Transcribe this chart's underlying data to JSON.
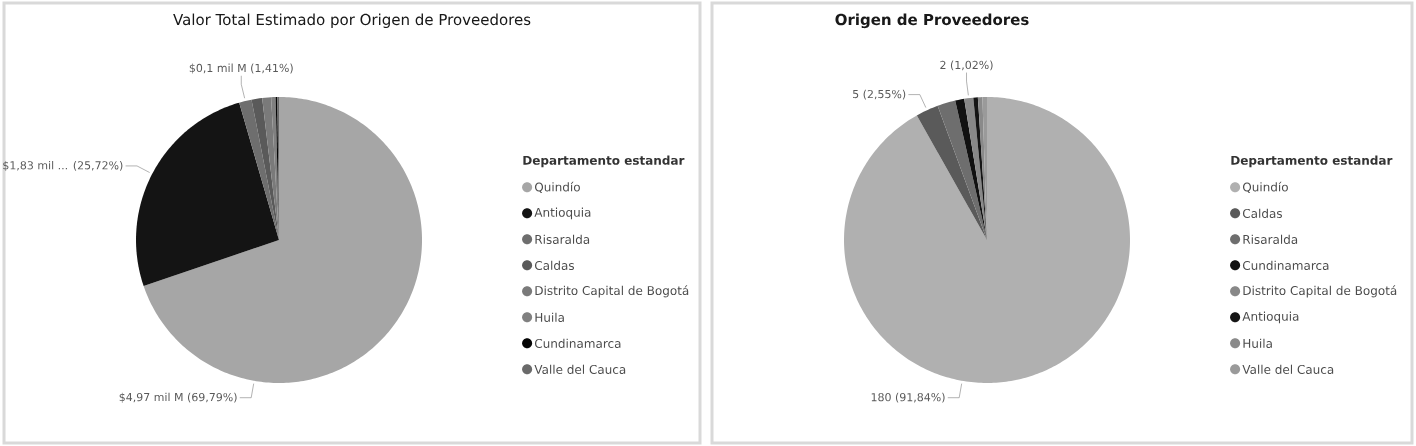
{
  "chart_data": [
    {
      "type": "pie",
      "title": "Valor Total Estimado por Origen de Proveedores",
      "legend_title": "Departamento estandar",
      "legend": "right",
      "categories": [
        "Quindío",
        "Antioquia",
        "Risaralda",
        "Caldas",
        "Distrito Capital de Bogotá",
        "Huila",
        "Cundinamarca",
        "Valle del Cauca"
      ],
      "values": [
        69.79,
        25.72,
        1.41,
        1.2,
        1.0,
        0.5,
        0.2,
        0.18
      ],
      "colors": [
        "#a6a6a6",
        "#141414",
        "#6e6e6e",
        "#5a5a5a",
        "#7a7a7a",
        "#808080",
        "#050505",
        "#6a6a6a"
      ],
      "value_labels": [
        "$4,97 mil M (69,79%)",
        "$1,83 mil ... (25,72%)",
        "$0,1 mil M (1,41%)",
        null,
        null,
        null,
        null,
        null
      ]
    },
    {
      "type": "pie",
      "title": "Origen de Proveedores",
      "legend_title": "Departamento estandar",
      "legend": "right",
      "categories": [
        "Quindío",
        "Caldas",
        "Risaralda",
        "Cundinamarca",
        "Distrito Capital de Bogotá",
        "Antioquia",
        "Huila",
        "Valle del Cauca"
      ],
      "values": [
        180,
        5,
        4,
        2,
        2,
        1,
        1,
        1
      ],
      "colors": [
        "#b0b0b0",
        "#5a5a5a",
        "#6e6e6e",
        "#111111",
        "#888888",
        "#151515",
        "#8a8a8a",
        "#9a9a9a"
      ],
      "value_labels": [
        "180 (91,84%)",
        "5 (2,55%)",
        null,
        null,
        "2 (1,02%)",
        null,
        null,
        null
      ]
    }
  ]
}
